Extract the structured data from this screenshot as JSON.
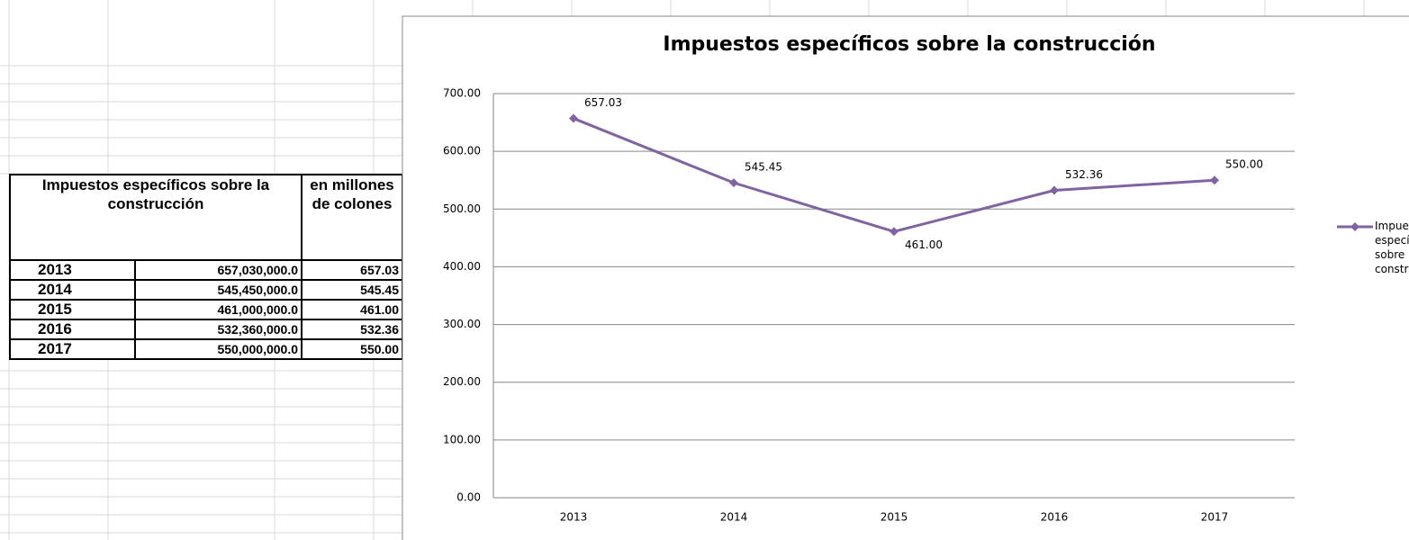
{
  "table": {
    "header": [
      "Impuestos específicos sobre la construcción",
      "en millones de colones"
    ],
    "rows": [
      [
        "2013",
        "657,030,000.0",
        "657.03"
      ],
      [
        "2014",
        "545,450,000.0",
        "545.45"
      ],
      [
        "2015",
        "461,000,000.0",
        "461.00"
      ],
      [
        "2016",
        "532,360,000.0",
        "532.36"
      ],
      [
        "2017",
        "550,000,000.0",
        "550.00"
      ]
    ]
  },
  "chart_data": {
    "type": "line",
    "title": "Impuestos específicos sobre la construcción",
    "categories": [
      "2013",
      "2014",
      "2015",
      "2016",
      "2017"
    ],
    "series": [
      {
        "name": "Impuestos específicos sobre la construcción",
        "color": "#8064a2",
        "values": [
          657.03,
          545.45,
          461.0,
          532.36,
          550.0
        ],
        "value_labels": [
          "657.03",
          "545.45",
          "461.00",
          "532.36",
          "550.00"
        ]
      }
    ],
    "ylim": [
      0,
      700
    ],
    "yticks": [
      {
        "value": 0,
        "label": "0.00"
      },
      {
        "value": 100,
        "label": "100.00"
      },
      {
        "value": 200,
        "label": "200.00"
      },
      {
        "value": 300,
        "label": "300.00"
      },
      {
        "value": 400,
        "label": "400.00"
      },
      {
        "value": 500,
        "label": "500.00"
      },
      {
        "value": 600,
        "label": "600.00"
      },
      {
        "value": 700,
        "label": "700.00"
      }
    ],
    "grid": true,
    "legend": "right"
  }
}
